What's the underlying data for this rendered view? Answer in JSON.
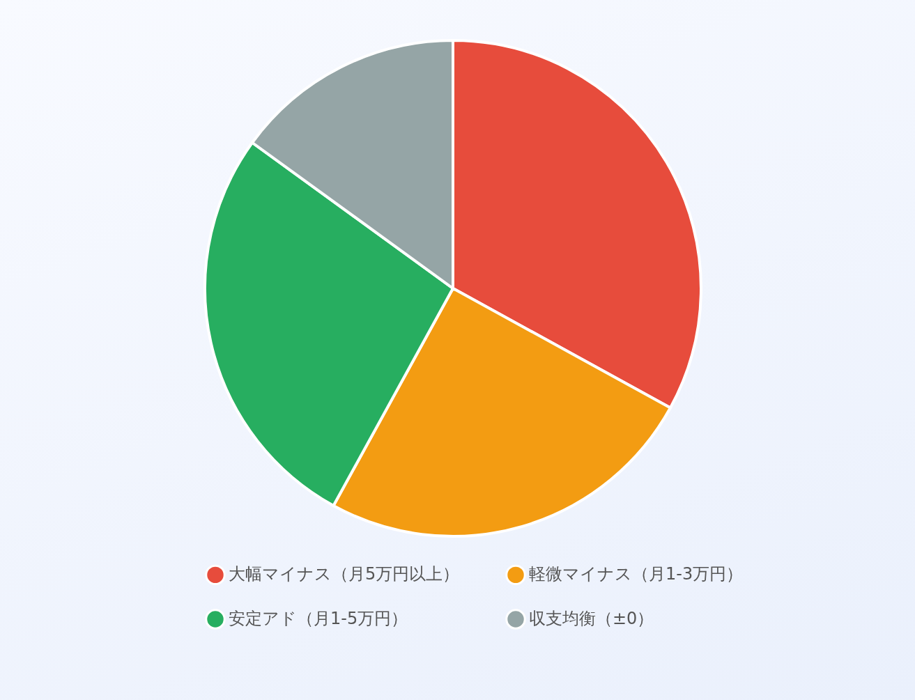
{
  "chart_data": {
    "type": "pie",
    "categories": [
      "大幅マイナス（月5万円以上）",
      "軽微マイナス（月1-3万円）",
      "安定アド（月1-5万円）",
      "収支均衡（±0）"
    ],
    "values": [
      33,
      25,
      27,
      15
    ],
    "colors": [
      "#e74c3c",
      "#f39c12",
      "#27ae60",
      "#95a5a6"
    ],
    "legend": "bottom"
  }
}
